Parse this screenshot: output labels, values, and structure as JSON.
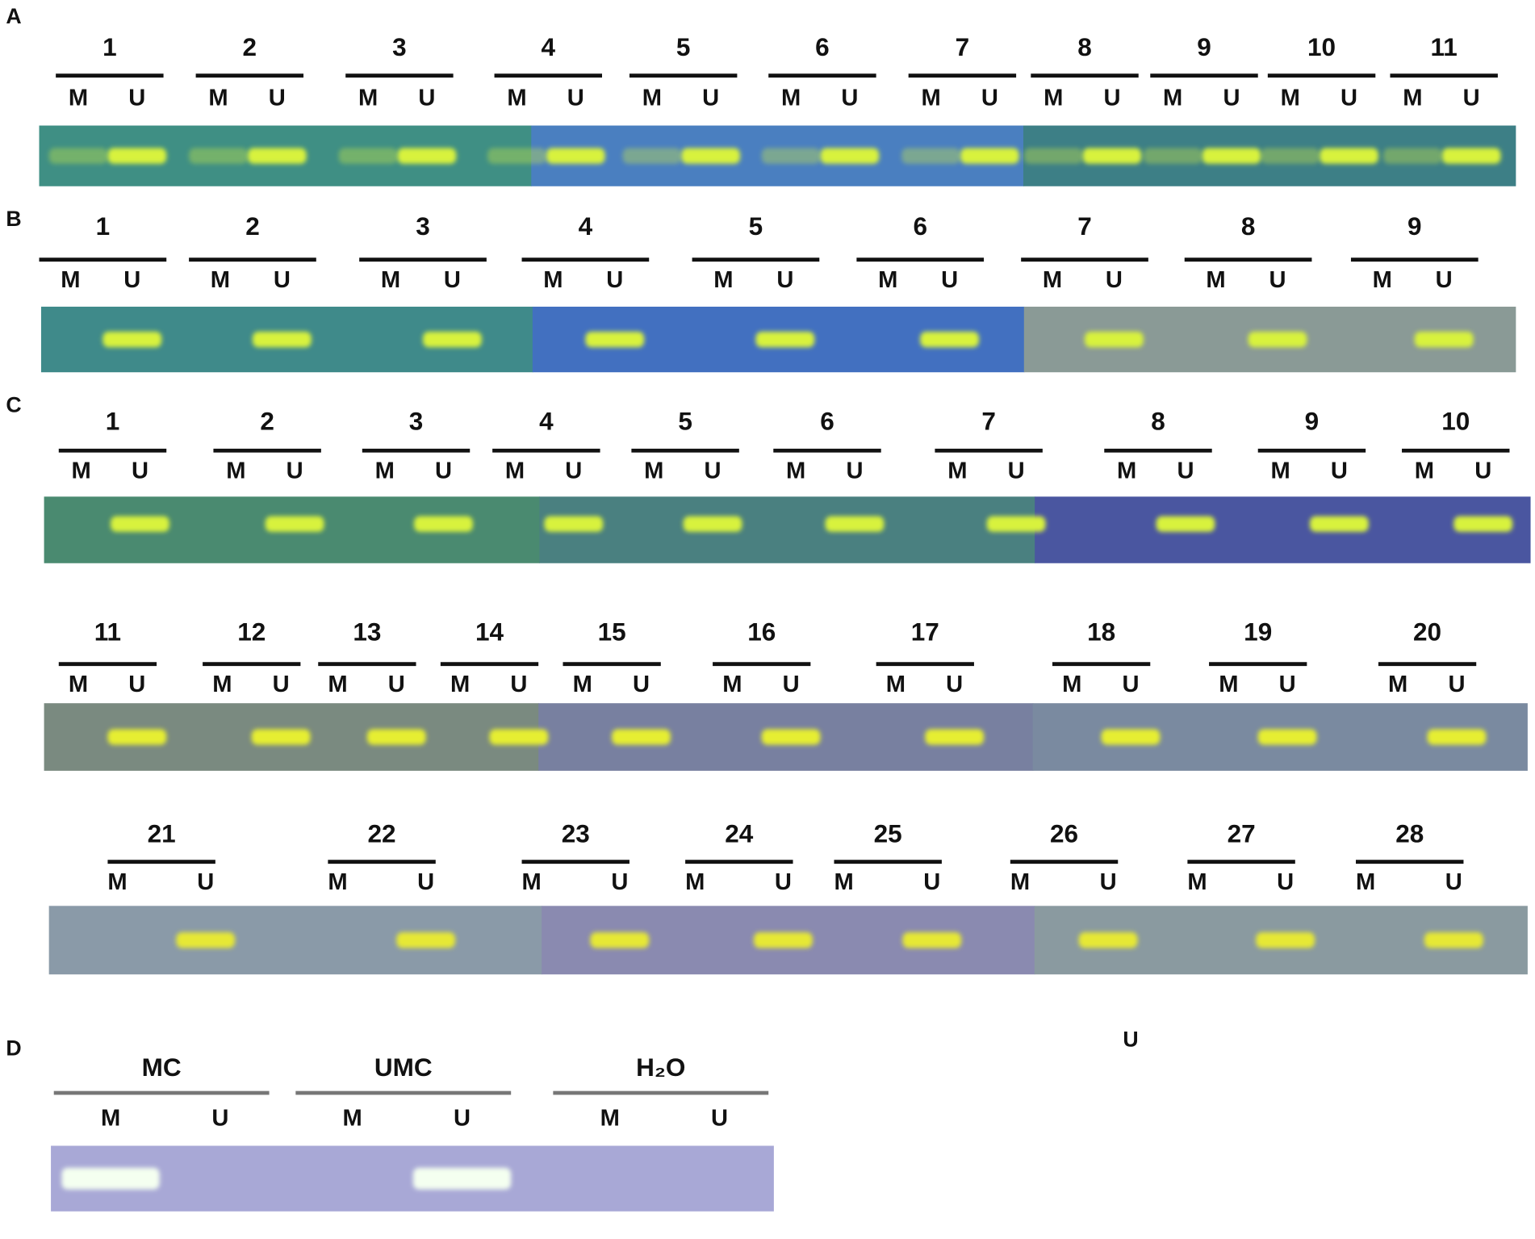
{
  "panels": [
    {
      "label": "A",
      "rows": [
        {
          "samples": [
            {
              "name": "1",
              "m": "M",
              "u": "U"
            },
            {
              "name": "2",
              "m": "M",
              "u": "U"
            },
            {
              "name": "3",
              "m": "M",
              "u": "U"
            },
            {
              "name": "4",
              "m": "M",
              "u": "U"
            },
            {
              "name": "5",
              "m": "M",
              "u": "U"
            },
            {
              "name": "6",
              "m": "M",
              "u": "U"
            },
            {
              "name": "7",
              "m": "M",
              "u": "U"
            },
            {
              "name": "8",
              "m": "M",
              "u": "U"
            },
            {
              "name": "9",
              "m": "M",
              "u": "U"
            },
            {
              "name": "10",
              "m": "M",
              "u": "U"
            },
            {
              "name": "11",
              "m": "M",
              "u": "U"
            }
          ]
        }
      ]
    },
    {
      "label": "B",
      "rows": [
        {
          "samples": [
            {
              "name": "1",
              "m": "M",
              "u": "U"
            },
            {
              "name": "2",
              "m": "M",
              "u": "U"
            },
            {
              "name": "3",
              "m": "M",
              "u": "U"
            },
            {
              "name": "4",
              "m": "M",
              "u": "U"
            },
            {
              "name": "5",
              "m": "M",
              "u": "U"
            },
            {
              "name": "6",
              "m": "M",
              "u": "U"
            },
            {
              "name": "7",
              "m": "M",
              "u": "U"
            },
            {
              "name": "8",
              "m": "M",
              "u": "U"
            },
            {
              "name": "9",
              "m": "M",
              "u": "U"
            }
          ]
        }
      ]
    },
    {
      "label": "C",
      "rows": [
        {
          "samples": [
            {
              "name": "1",
              "m": "M",
              "u": "U"
            },
            {
              "name": "2",
              "m": "M",
              "u": "U"
            },
            {
              "name": "3",
              "m": "M",
              "u": "U"
            },
            {
              "name": "4",
              "m": "M",
              "u": "U"
            },
            {
              "name": "5",
              "m": "M",
              "u": "U"
            },
            {
              "name": "6",
              "m": "M",
              "u": "U"
            },
            {
              "name": "7",
              "m": "M",
              "u": "U"
            },
            {
              "name": "8",
              "m": "M",
              "u": "U"
            },
            {
              "name": "9",
              "m": "M",
              "u": "U"
            },
            {
              "name": "10",
              "m": "M",
              "u": "U"
            }
          ]
        },
        {
          "samples": [
            {
              "name": "11",
              "m": "M",
              "u": "U"
            },
            {
              "name": "12",
              "m": "M",
              "u": "U"
            },
            {
              "name": "13",
              "m": "M",
              "u": "U"
            },
            {
              "name": "14",
              "m": "M",
              "u": "U"
            },
            {
              "name": "15",
              "m": "M",
              "u": "U"
            },
            {
              "name": "16",
              "m": "M",
              "u": "U"
            },
            {
              "name": "17",
              "m": "M",
              "u": "U"
            },
            {
              "name": "18",
              "m": "M",
              "u": "U"
            },
            {
              "name": "19",
              "m": "M",
              "u": "U"
            },
            {
              "name": "20",
              "m": "M",
              "u": "U"
            }
          ]
        },
        {
          "samples": [
            {
              "name": "21",
              "m": "M",
              "u": "U"
            },
            {
              "name": "22",
              "m": "M",
              "u": "U"
            },
            {
              "name": "23",
              "m": "M",
              "u": "U"
            },
            {
              "name": "24",
              "m": "M",
              "u": "U"
            },
            {
              "name": "25",
              "m": "M",
              "u": "U"
            },
            {
              "name": "26",
              "m": "M",
              "u": "U"
            },
            {
              "name": "27",
              "m": "M",
              "u": "U"
            },
            {
              "name": "28",
              "m": "M",
              "u": "U"
            }
          ]
        }
      ]
    },
    {
      "label": "D",
      "rows": [
        {
          "samples": [
            {
              "name": "MC",
              "m": "M",
              "u": "U"
            },
            {
              "name": "UMC",
              "m": "M",
              "u": "U"
            },
            {
              "name": "H₂O",
              "m": "M",
              "u": "U"
            }
          ]
        }
      ]
    }
  ],
  "stray_label": "U"
}
